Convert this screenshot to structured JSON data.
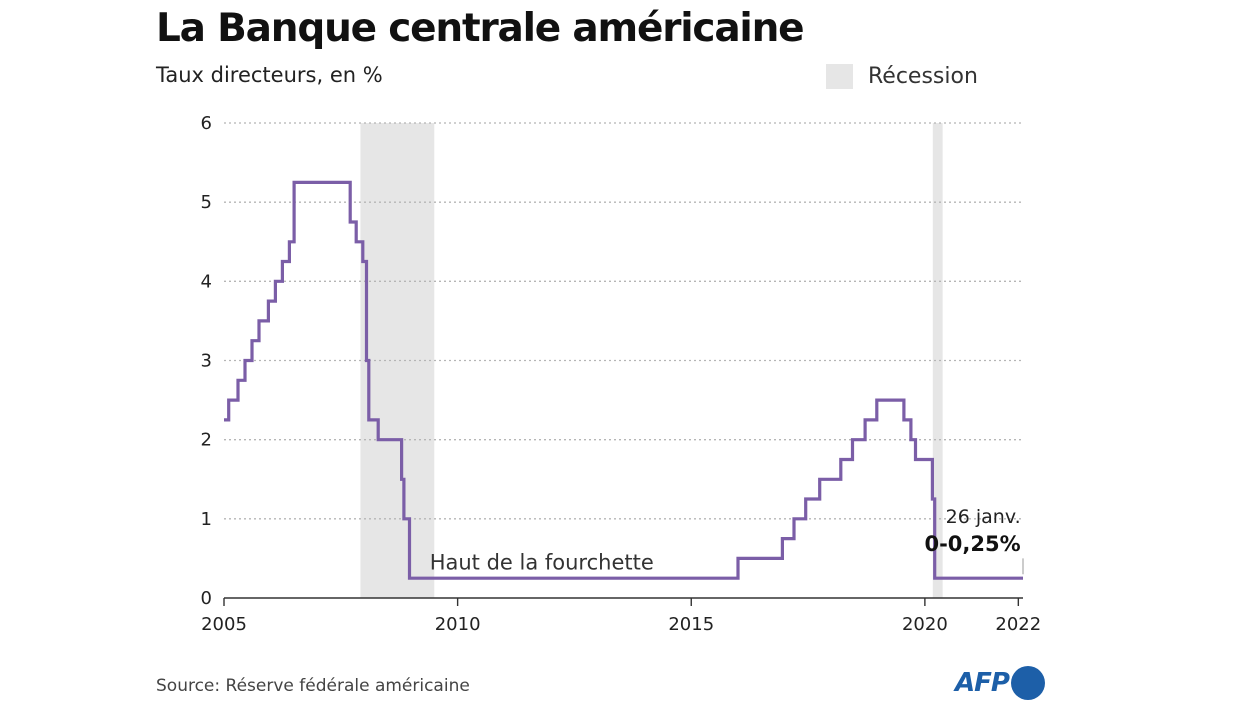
{
  "title": "La Banque centrale américaine",
  "subtitle": "Taux directeurs, en %",
  "legend": {
    "label": "Récession",
    "color": "#e6e6e6"
  },
  "source": "Source: Réserve fédérale américaine",
  "logo": {
    "text": "AFP"
  },
  "colors": {
    "line": "#7b5ea7",
    "recession": "#e6e6e6",
    "grid": "#b5b5b5",
    "axis": "#333333",
    "accent": "#1d5fa8"
  },
  "chart_data": {
    "type": "line",
    "step": true,
    "xlim": [
      2005,
      2022.1
    ],
    "ylim": [
      0,
      6
    ],
    "yticks": [
      0,
      1,
      2,
      3,
      4,
      5,
      6
    ],
    "xticks": [
      2005,
      2010,
      2015,
      2020,
      2022
    ],
    "grid": "horizontal-dotted",
    "recessions": [
      [
        2007.92,
        2009.5
      ],
      [
        2020.17,
        2020.38
      ]
    ],
    "series": [
      {
        "name": "",
        "x": [
          2005.0,
          2005.1,
          2005.3,
          2005.45,
          2005.6,
          2005.75,
          2005.95,
          2006.1,
          2006.25,
          2006.4,
          2006.5,
          2007.7,
          2007.83,
          2007.97,
          2008.05,
          2008.1,
          2008.3,
          2008.8,
          2008.85,
          2008.97,
          2016.0,
          2016.95,
          2017.2,
          2017.45,
          2017.75,
          2018.2,
          2018.45,
          2018.72,
          2018.97,
          2019.55,
          2019.7,
          2019.8,
          2020.16,
          2020.21,
          2022.1
        ],
        "y": [
          2.25,
          2.5,
          2.75,
          3.0,
          3.25,
          3.5,
          3.75,
          4.0,
          4.25,
          4.5,
          5.25,
          4.75,
          4.5,
          4.25,
          3.0,
          2.25,
          2.0,
          1.5,
          1.0,
          0.25,
          0.5,
          0.75,
          1.0,
          1.25,
          1.5,
          1.75,
          2.0,
          2.25,
          2.5,
          2.25,
          2.0,
          1.75,
          1.25,
          0.25,
          0.25
        ]
      }
    ],
    "annotations": {
      "series_label": "Haut de la fourchette",
      "end_date": "26 janv.",
      "end_value": "0-0,25%"
    }
  }
}
